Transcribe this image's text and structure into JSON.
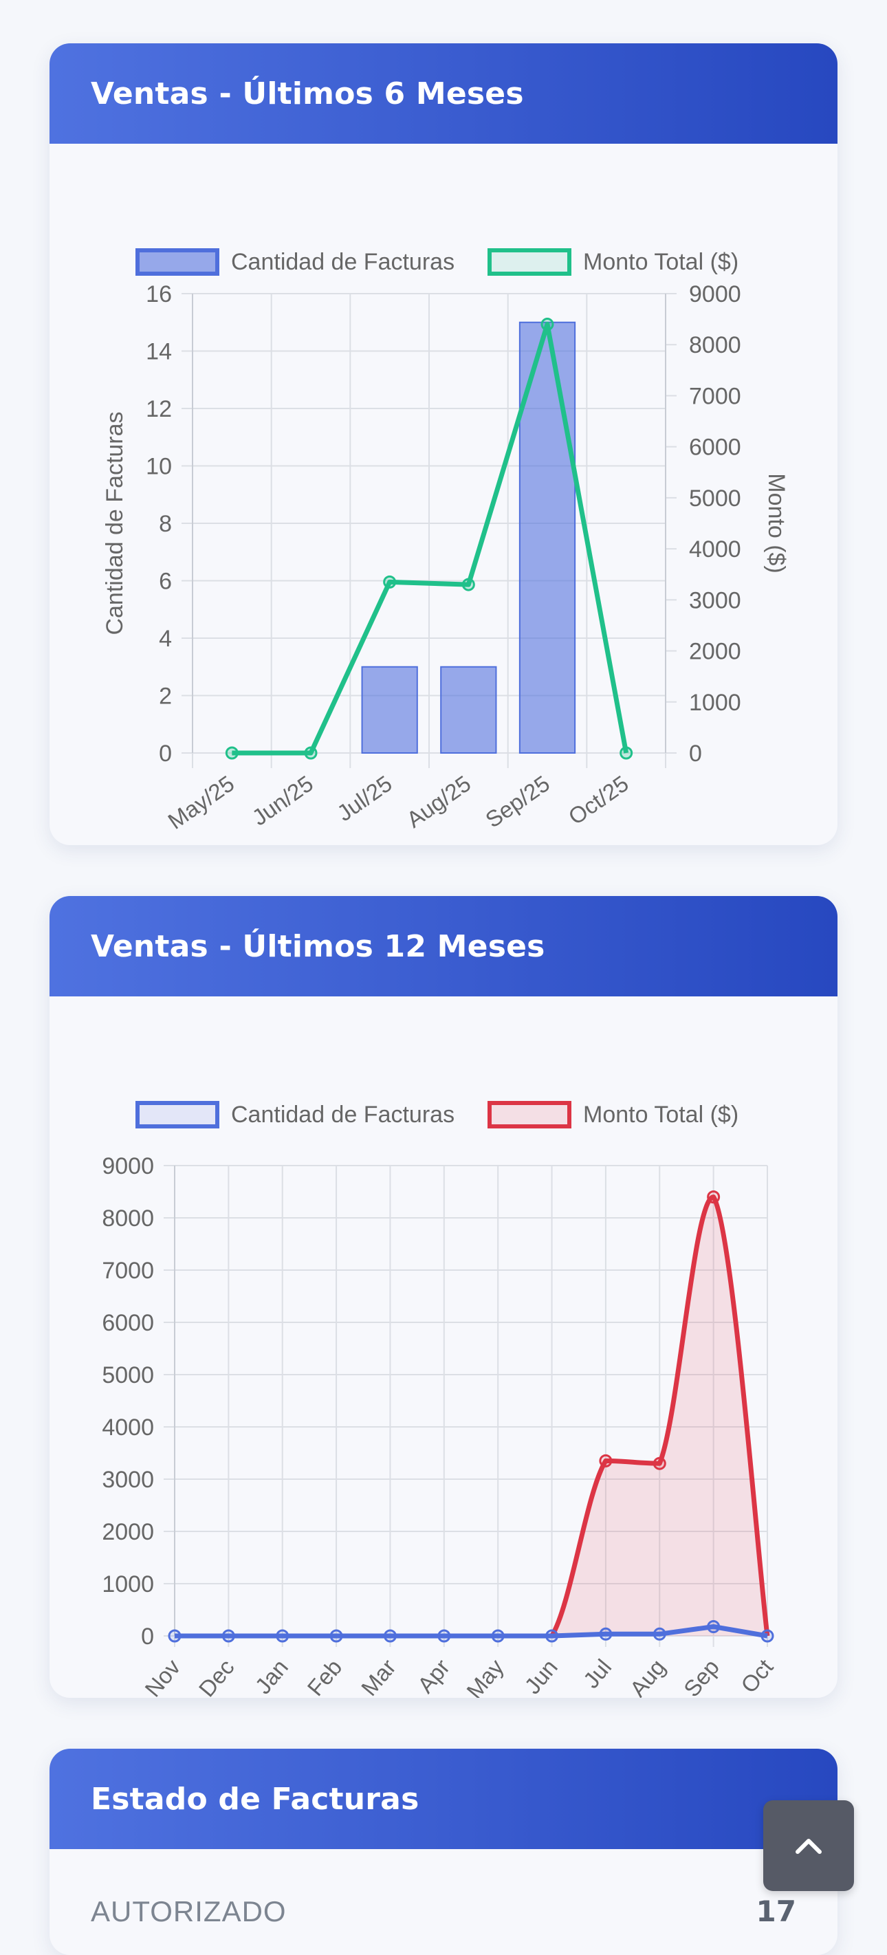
{
  "cards": [
    {
      "title": "Ventas - Últimos 6 Meses"
    },
    {
      "title": "Ventas - Últimos 12 Meses"
    },
    {
      "title": "Estado de Facturas"
    }
  ],
  "status": {
    "label": "AUTORIZADO",
    "count": "17"
  },
  "scroll_top": {
    "icon": "chevron-up-icon"
  },
  "chart_data": [
    {
      "type": "bar",
      "title": "",
      "categories": [
        "May/25",
        "Jun/25",
        "Jul/25",
        "Aug/25",
        "Sep/25",
        "Oct/25"
      ],
      "series": [
        {
          "name": "Cantidad de Facturas",
          "type": "bar",
          "axis": "left",
          "values": [
            0,
            0,
            3,
            3,
            15,
            0
          ],
          "color": "#4f6fdc"
        },
        {
          "name": "Monto Total ($)",
          "type": "line",
          "axis": "right",
          "values": [
            0,
            0,
            3350,
            3300,
            8400,
            0
          ],
          "color": "#20c08a"
        }
      ],
      "ylabel": "Cantidad de Facturas",
      "y2label": "Monto ($)",
      "ylim": [
        0,
        16
      ],
      "y2lim": [
        0,
        9000
      ],
      "yticks": [
        "0",
        "2",
        "4",
        "6",
        "8",
        "10",
        "12",
        "14",
        "16"
      ],
      "y2ticks": [
        "0",
        "1000",
        "2000",
        "3000",
        "4000",
        "5000",
        "6000",
        "7000",
        "8000",
        "9000"
      ],
      "grid": true,
      "legend": "top"
    },
    {
      "type": "area",
      "title": "",
      "categories": [
        "Nov",
        "Dec",
        "Jan",
        "Feb",
        "Mar",
        "Apr",
        "May",
        "Jun",
        "Jul",
        "Aug",
        "Sep",
        "Oct"
      ],
      "series": [
        {
          "name": "Cantidad de Facturas",
          "values": [
            0,
            0,
            0,
            0,
            0,
            0,
            0,
            0,
            3,
            3,
            15,
            0
          ],
          "color": "#4f6fdc"
        },
        {
          "name": "Monto Total ($)",
          "values": [
            0,
            0,
            0,
            0,
            0,
            0,
            0,
            0,
            3350,
            3300,
            8400,
            0
          ],
          "color": "#dc3545"
        }
      ],
      "ylim": [
        0,
        9000
      ],
      "yticks": [
        "0",
        "1000",
        "2000",
        "3000",
        "4000",
        "5000",
        "6000",
        "7000",
        "8000",
        "9000"
      ],
      "grid": true,
      "legend": "top"
    }
  ]
}
